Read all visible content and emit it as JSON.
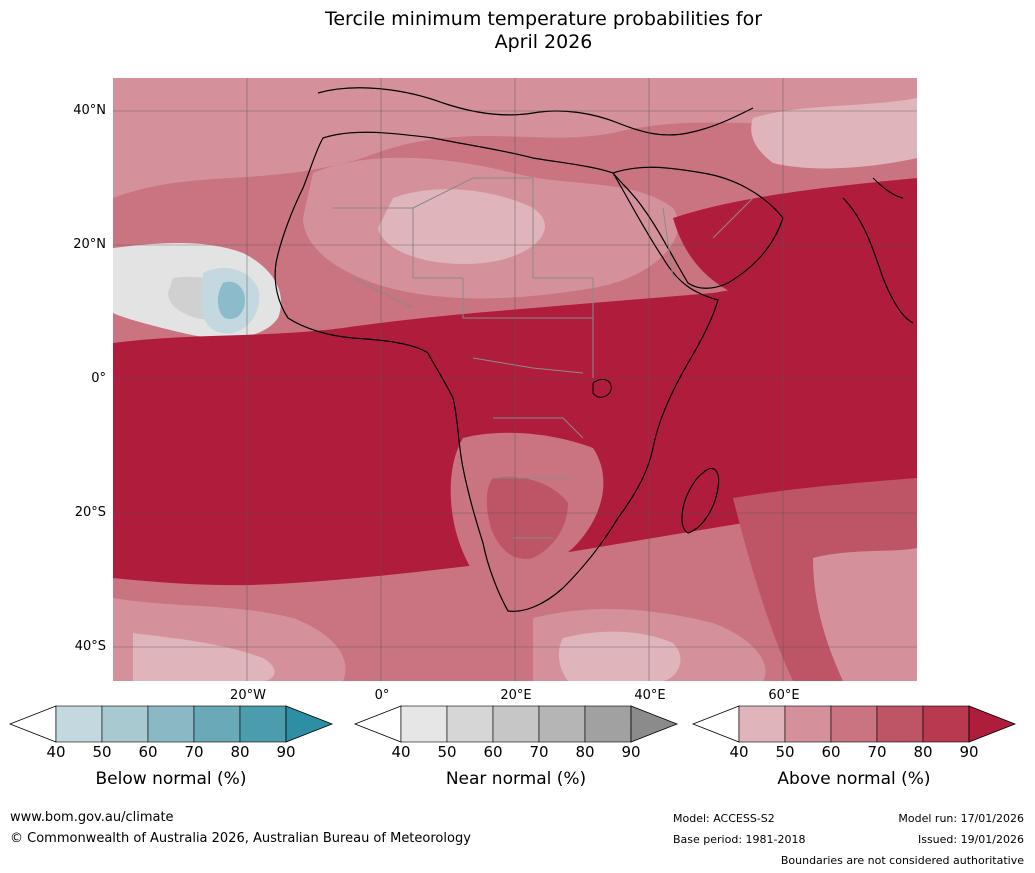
{
  "title": {
    "line1": "Tercile minimum temperature probabilities for",
    "line2": "April 2026"
  },
  "map": {
    "lat_labels": [
      "40°N",
      "20°N",
      "0°",
      "20°S",
      "40°S"
    ],
    "lon_labels": [
      "20°W",
      "0°",
      "20°E",
      "40°E",
      "60°E"
    ],
    "colors": {
      "above_40": "#ffffff",
      "above_50": "#e0b4bb",
      "above_60": "#d4919c",
      "above_70": "#c97480",
      "above_80": "#be5566",
      "above_90": "#b01c3c",
      "near_50": "#e3e3e3",
      "near_60": "#d0d0d0",
      "below_50": "#c3d8df",
      "below_70": "#8cbccb",
      "grid": "#555555",
      "coast": "#000000",
      "border": "#8a8a8a"
    }
  },
  "legends": [
    {
      "name": "below",
      "title": "Below normal (%)",
      "ticks": [
        "40",
        "50",
        "60",
        "70",
        "80",
        "90"
      ],
      "colors": [
        "#c3d8df",
        "#a9c9d1",
        "#8ab8c4",
        "#6aa9b7",
        "#4b9cac"
      ],
      "extend_color": "#2e8ea3"
    },
    {
      "name": "near",
      "title": "Near normal (%)",
      "ticks": [
        "40",
        "50",
        "60",
        "70",
        "80",
        "90"
      ],
      "colors": [
        "#e6e6e6",
        "#d6d6d6",
        "#c6c6c6",
        "#b5b5b5",
        "#a1a1a1"
      ],
      "extend_color": "#8b8b8b"
    },
    {
      "name": "above",
      "title": "Above normal (%)",
      "ticks": [
        "40",
        "50",
        "60",
        "70",
        "80",
        "90"
      ],
      "colors": [
        "#e0b4bb",
        "#d4919c",
        "#c97480",
        "#be5566",
        "#b83950"
      ],
      "extend_color": "#b01c3c"
    }
  ],
  "footer": {
    "website": "www.bom.gov.au/climate",
    "copyright": "© Commonwealth of Australia 2026, Australian Bureau of Meteorology",
    "model": "Model: ACCESS-S2",
    "base_period": "Base period: 1981-2018",
    "model_run": "Model run: 17/01/2026",
    "issued": "Issued: 19/01/2026",
    "disclaimer": "Boundaries are not considered authoritative"
  }
}
